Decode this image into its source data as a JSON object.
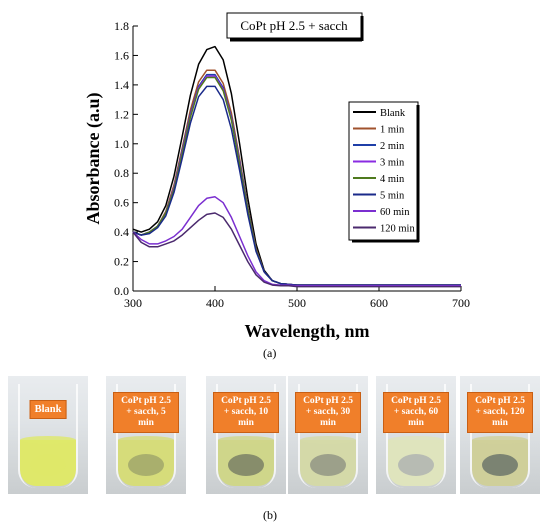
{
  "chart_data": {
    "type": "line",
    "title": "CoPt pH 2.5 + sacch",
    "xlabel": "Wavelength, nm",
    "ylabel": "Absorbance (a.u)",
    "xlim": [
      300,
      700
    ],
    "ylim": [
      0,
      1.8
    ],
    "x_ticks": [
      "300",
      "400",
      "500",
      "600",
      "700"
    ],
    "y_ticks": [
      "0.0",
      "0.2",
      "0.4",
      "0.6",
      "0.8",
      "1.0",
      "1.2",
      "1.4",
      "1.6",
      "1.8"
    ],
    "legend_position": "right",
    "x": [
      300,
      310,
      320,
      330,
      340,
      350,
      360,
      370,
      380,
      390,
      400,
      410,
      420,
      430,
      440,
      450,
      460,
      470,
      480,
      490,
      500,
      550,
      600,
      650,
      700
    ],
    "series": [
      {
        "name": "Blank",
        "color": "#000000",
        "values": [
          0.42,
          0.4,
          0.42,
          0.47,
          0.58,
          0.78,
          1.05,
          1.33,
          1.54,
          1.64,
          1.66,
          1.57,
          1.34,
          1.0,
          0.63,
          0.32,
          0.14,
          0.07,
          0.05,
          0.045,
          0.04,
          0.04,
          0.04,
          0.04,
          0.04
        ]
      },
      {
        "name": "1 min",
        "color": "#a0522d",
        "values": [
          0.4,
          0.38,
          0.4,
          0.44,
          0.54,
          0.72,
          0.97,
          1.23,
          1.42,
          1.5,
          1.5,
          1.41,
          1.21,
          0.9,
          0.57,
          0.29,
          0.13,
          0.07,
          0.05,
          0.045,
          0.04,
          0.04,
          0.04,
          0.04,
          0.04
        ]
      },
      {
        "name": "2 min",
        "color": "#1f3fa8",
        "values": [
          0.4,
          0.38,
          0.4,
          0.44,
          0.53,
          0.7,
          0.95,
          1.2,
          1.39,
          1.47,
          1.47,
          1.38,
          1.18,
          0.88,
          0.56,
          0.28,
          0.13,
          0.07,
          0.05,
          0.045,
          0.04,
          0.04,
          0.04,
          0.04,
          0.04
        ]
      },
      {
        "name": "3 min",
        "color": "#8a2be2",
        "values": [
          0.4,
          0.38,
          0.4,
          0.44,
          0.53,
          0.7,
          0.94,
          1.19,
          1.38,
          1.46,
          1.46,
          1.37,
          1.17,
          0.87,
          0.55,
          0.28,
          0.13,
          0.07,
          0.05,
          0.045,
          0.04,
          0.04,
          0.04,
          0.04,
          0.04
        ]
      },
      {
        "name": "4 min",
        "color": "#4f7a1e",
        "values": [
          0.4,
          0.38,
          0.4,
          0.44,
          0.53,
          0.69,
          0.93,
          1.18,
          1.37,
          1.45,
          1.45,
          1.36,
          1.16,
          0.86,
          0.55,
          0.28,
          0.13,
          0.07,
          0.05,
          0.045,
          0.04,
          0.04,
          0.04,
          0.04,
          0.04
        ]
      },
      {
        "name": "5 min",
        "color": "#1a2a8a",
        "values": [
          0.4,
          0.38,
          0.39,
          0.43,
          0.51,
          0.67,
          0.9,
          1.14,
          1.32,
          1.39,
          1.39,
          1.3,
          1.1,
          0.82,
          0.52,
          0.27,
          0.13,
          0.07,
          0.05,
          0.045,
          0.04,
          0.04,
          0.04,
          0.04,
          0.04
        ]
      },
      {
        "name": "60 min",
        "color": "#7b2fd0",
        "values": [
          0.4,
          0.35,
          0.32,
          0.32,
          0.34,
          0.37,
          0.42,
          0.5,
          0.58,
          0.63,
          0.64,
          0.6,
          0.5,
          0.37,
          0.24,
          0.13,
          0.07,
          0.045,
          0.04,
          0.04,
          0.035,
          0.035,
          0.035,
          0.035,
          0.035
        ]
      },
      {
        "name": "120 min",
        "color": "#4b2a6e",
        "values": [
          0.4,
          0.33,
          0.3,
          0.3,
          0.32,
          0.34,
          0.38,
          0.43,
          0.48,
          0.52,
          0.53,
          0.5,
          0.42,
          0.31,
          0.2,
          0.11,
          0.06,
          0.04,
          0.035,
          0.035,
          0.03,
          0.03,
          0.03,
          0.03,
          0.03
        ]
      }
    ]
  },
  "caption_a": "(a)",
  "caption_b": "(b)",
  "photos": [
    {
      "label": "Blank",
      "liquid": "#dfe86a",
      "sample": "#dfe86a"
    },
    {
      "label": "CoPt pH 2.5\n+ sacch, 5\nmin",
      "liquid": "#d6dc7a",
      "sample": "#9aa06a"
    },
    {
      "label": "CoPt pH 2.5\n+ sacch, 10\nmin",
      "liquid": "#cfd68a",
      "sample": "#6f7460"
    },
    {
      "label": "CoPt pH 2.5\n+ sacch, 30\nmin",
      "liquid": "#d4d9a8",
      "sample": "#8a8c80"
    },
    {
      "label": "CoPt pH 2.5\n+ sacch, 60\nmin",
      "liquid": "#dfe4bd",
      "sample": "#a9adb0"
    },
    {
      "label": "CoPt pH 2.5\n+ sacch, 120\nmin",
      "liquid": "#cfcf9a",
      "sample": "#5f6a64"
    }
  ]
}
